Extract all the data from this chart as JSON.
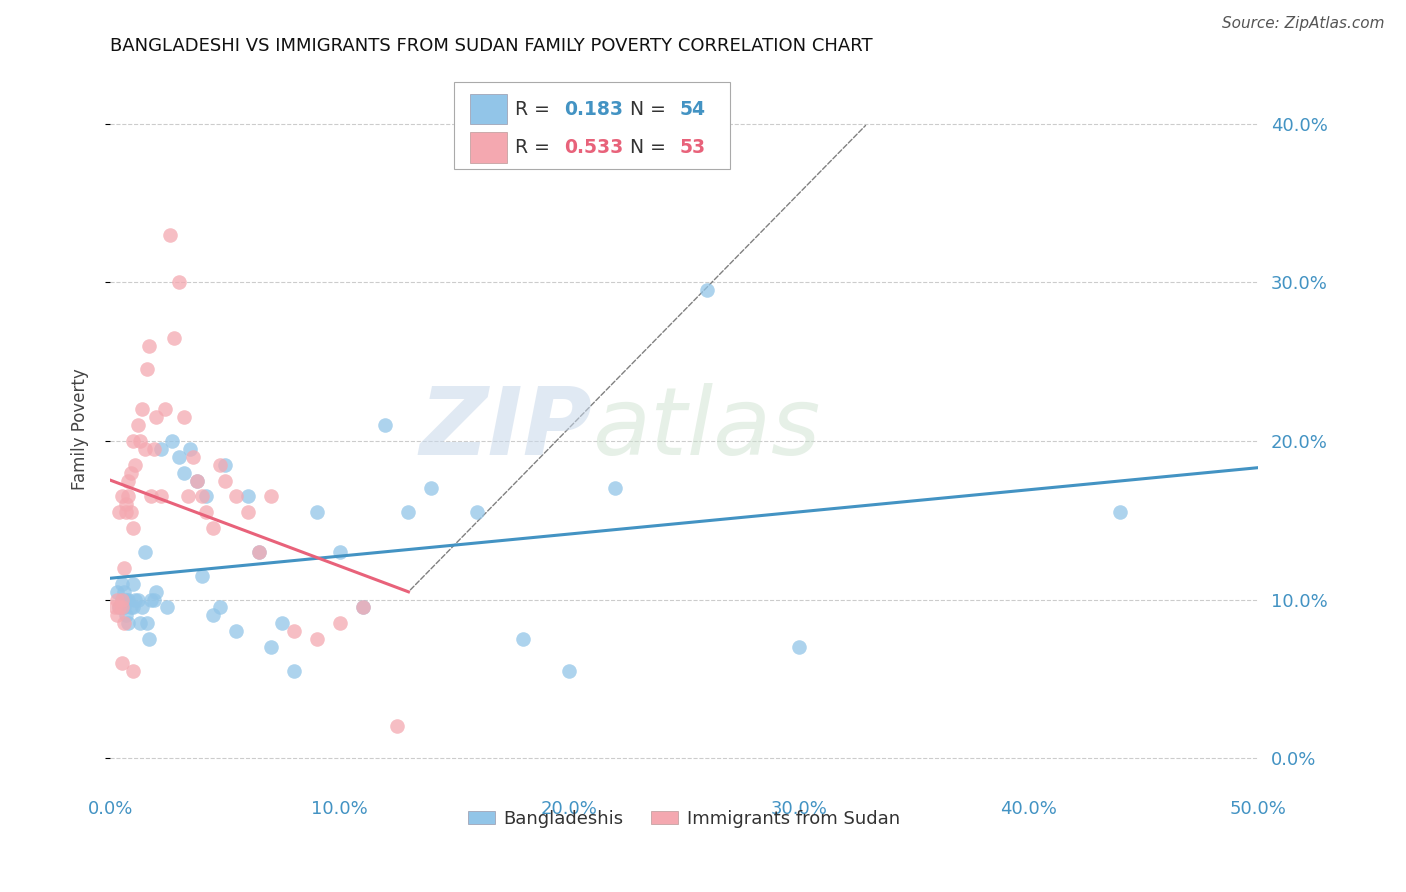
{
  "title": "BANGLADESHI VS IMMIGRANTS FROM SUDAN FAMILY POVERTY CORRELATION CHART",
  "source": "Source: ZipAtlas.com",
  "ylabel": "Family Poverty",
  "xlim": [
    0.0,
    0.5
  ],
  "ylim": [
    -0.02,
    0.435
  ],
  "yticks": [
    0.0,
    0.1,
    0.2,
    0.3,
    0.4
  ],
  "xticks": [
    0.0,
    0.1,
    0.2,
    0.3,
    0.4,
    0.5
  ],
  "color_blue": "#92c5e8",
  "color_pink": "#f4a8b0",
  "line_blue": "#4393c3",
  "line_pink": "#e8627a",
  "watermark_zip": "ZIP",
  "watermark_atlas": "atlas",
  "bangladeshi_x": [
    0.003,
    0.004,
    0.005,
    0.005,
    0.006,
    0.006,
    0.007,
    0.007,
    0.008,
    0.008,
    0.009,
    0.01,
    0.01,
    0.011,
    0.012,
    0.013,
    0.014,
    0.015,
    0.016,
    0.017,
    0.018,
    0.019,
    0.02,
    0.022,
    0.025,
    0.027,
    0.03,
    0.032,
    0.035,
    0.038,
    0.04,
    0.042,
    0.045,
    0.048,
    0.05,
    0.055,
    0.06,
    0.065,
    0.07,
    0.075,
    0.08,
    0.09,
    0.1,
    0.11,
    0.12,
    0.13,
    0.14,
    0.16,
    0.18,
    0.2,
    0.22,
    0.26,
    0.3,
    0.44
  ],
  "bangladeshi_y": [
    0.105,
    0.095,
    0.1,
    0.11,
    0.095,
    0.105,
    0.09,
    0.1,
    0.085,
    0.1,
    0.095,
    0.11,
    0.095,
    0.1,
    0.1,
    0.085,
    0.095,
    0.13,
    0.085,
    0.075,
    0.1,
    0.1,
    0.105,
    0.195,
    0.095,
    0.2,
    0.19,
    0.18,
    0.195,
    0.175,
    0.115,
    0.165,
    0.09,
    0.095,
    0.185,
    0.08,
    0.165,
    0.13,
    0.07,
    0.085,
    0.055,
    0.155,
    0.13,
    0.095,
    0.21,
    0.155,
    0.17,
    0.155,
    0.075,
    0.055,
    0.17,
    0.295,
    0.07,
    0.155
  ],
  "sudan_x": [
    0.002,
    0.003,
    0.003,
    0.004,
    0.004,
    0.005,
    0.005,
    0.005,
    0.006,
    0.006,
    0.007,
    0.007,
    0.008,
    0.008,
    0.009,
    0.009,
    0.01,
    0.01,
    0.011,
    0.012,
    0.013,
    0.014,
    0.015,
    0.016,
    0.017,
    0.018,
    0.019,
    0.02,
    0.022,
    0.024,
    0.026,
    0.028,
    0.03,
    0.032,
    0.034,
    0.036,
    0.038,
    0.04,
    0.042,
    0.045,
    0.048,
    0.05,
    0.055,
    0.06,
    0.065,
    0.07,
    0.08,
    0.09,
    0.1,
    0.11,
    0.125,
    0.005,
    0.01
  ],
  "sudan_y": [
    0.095,
    0.1,
    0.09,
    0.095,
    0.155,
    0.095,
    0.1,
    0.165,
    0.085,
    0.12,
    0.155,
    0.16,
    0.165,
    0.175,
    0.155,
    0.18,
    0.2,
    0.145,
    0.185,
    0.21,
    0.2,
    0.22,
    0.195,
    0.245,
    0.26,
    0.165,
    0.195,
    0.215,
    0.165,
    0.22,
    0.33,
    0.265,
    0.3,
    0.215,
    0.165,
    0.19,
    0.175,
    0.165,
    0.155,
    0.145,
    0.185,
    0.175,
    0.165,
    0.155,
    0.13,
    0.165,
    0.08,
    0.075,
    0.085,
    0.095,
    0.02,
    0.06,
    0.055
  ]
}
